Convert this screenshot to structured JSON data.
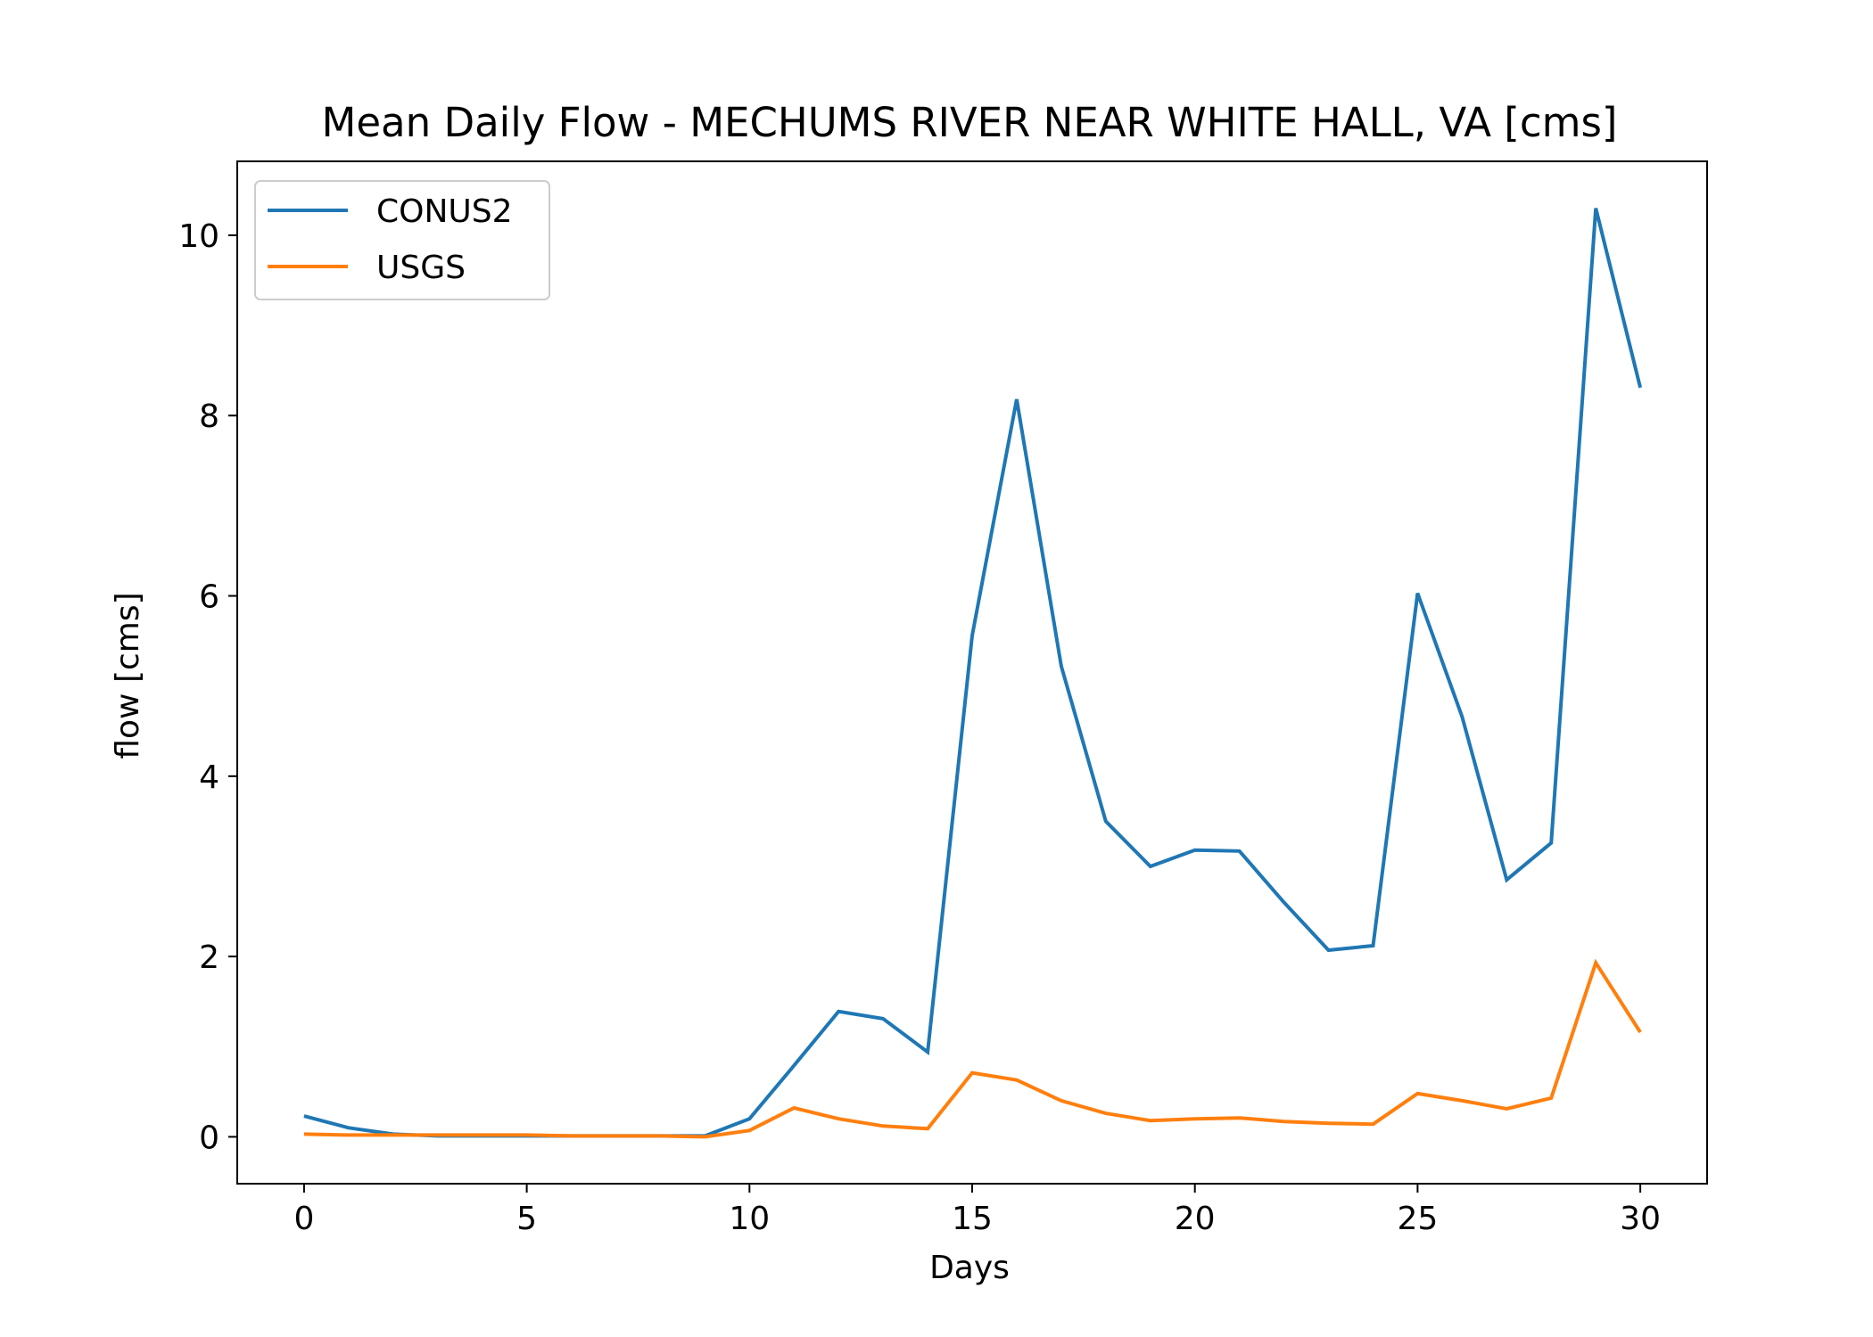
{
  "chart_data": {
    "type": "line",
    "title": "Mean Daily Flow - MECHUMS RIVER NEAR WHITE HALL, VA [cms]",
    "xlabel": "Days",
    "ylabel": "flow [cms]",
    "xlim": [
      -1.5,
      31.5
    ],
    "ylim": [
      -0.52,
      10.82
    ],
    "xticks": [
      0,
      5,
      10,
      15,
      20,
      25,
      30
    ],
    "xtick_labels": [
      "0",
      "5",
      "10",
      "15",
      "20",
      "25",
      "30"
    ],
    "yticks": [
      0,
      2,
      4,
      6,
      8,
      10
    ],
    "ytick_labels": [
      "0",
      "2",
      "4",
      "6",
      "8",
      "10"
    ],
    "grid": false,
    "legend_position": "upper-left",
    "x": [
      0,
      1,
      2,
      3,
      4,
      5,
      6,
      7,
      8,
      9,
      10,
      11,
      12,
      13,
      14,
      15,
      16,
      17,
      18,
      19,
      20,
      21,
      22,
      23,
      24,
      25,
      26,
      27,
      28,
      29,
      30
    ],
    "series": [
      {
        "name": "CONUS2",
        "color": "#1f77b4",
        "values": [
          0.23,
          0.1,
          0.03,
          0.01,
          0.01,
          0.01,
          0.01,
          0.01,
          0.01,
          0.01,
          0.2,
          0.79,
          1.39,
          1.31,
          0.94,
          5.56,
          8.18,
          5.22,
          3.5,
          3.0,
          3.18,
          3.17,
          2.6,
          2.07,
          2.12,
          6.03,
          4.66,
          2.85,
          3.26,
          10.3,
          8.31
        ]
      },
      {
        "name": "USGS",
        "color": "#ff7f0e",
        "values": [
          0.03,
          0.02,
          0.02,
          0.02,
          0.02,
          0.02,
          0.01,
          0.01,
          0.01,
          0.0,
          0.07,
          0.32,
          0.2,
          0.12,
          0.09,
          0.71,
          0.63,
          0.4,
          0.26,
          0.18,
          0.2,
          0.21,
          0.17,
          0.15,
          0.14,
          0.48,
          0.4,
          0.31,
          0.43,
          1.93,
          1.16
        ]
      }
    ]
  }
}
